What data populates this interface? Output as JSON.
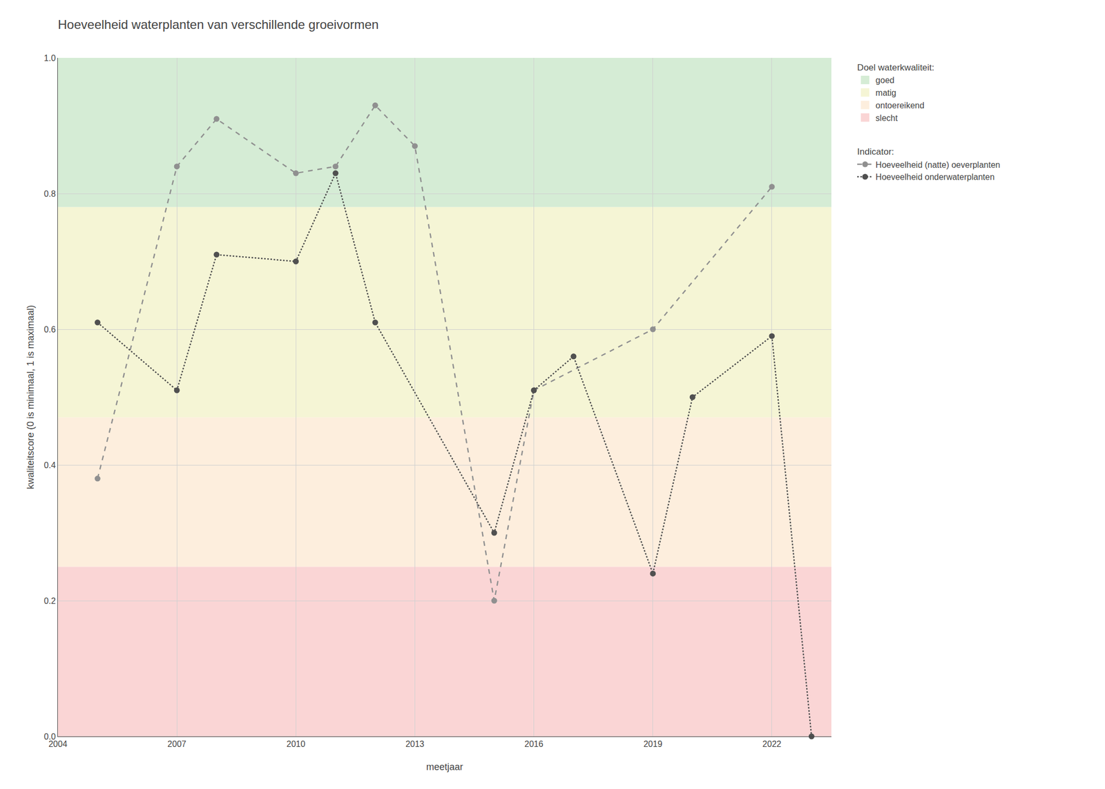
{
  "chart_data": {
    "type": "line",
    "title": "Hoeveelheid waterplanten van verschillende groeivormen",
    "x_label": "meetjaar",
    "y_label": "kwaliteitscore (0 is minimaal, 1 is maximaal)",
    "zones_title": "Doel waterkwaliteit:",
    "zones": [
      {
        "label": "goed",
        "color": "#d5ecd5",
        "ymin": 0.78,
        "ymax": 1.0
      },
      {
        "label": "matig",
        "color": "#f5f5d5",
        "ymin": 0.47,
        "ymax": 0.78
      },
      {
        "label": "ontoereikend",
        "color": "#fdeedd",
        "ymin": 0.25,
        "ymax": 0.47
      },
      {
        "label": "slecht",
        "color": "#fad5d5",
        "ymin": 0.0,
        "ymax": 0.25
      }
    ],
    "legend_title": "Indicator:",
    "series": [
      {
        "name": "Hoeveelheid (natte) oeverplanten",
        "color": "#909090",
        "line_style": "dashed",
        "marker": "circle",
        "x": [
          2005,
          2007,
          2008,
          2010,
          2011,
          2012,
          2013,
          2015,
          2016,
          2019,
          2022
        ],
        "values": [
          0.38,
          0.84,
          0.91,
          0.83,
          0.84,
          0.93,
          0.87,
          0.2,
          0.51,
          0.6,
          0.81
        ]
      },
      {
        "name": "Hoeveelheid onderwaterplanten",
        "color": "#505050",
        "line_style": "dotted",
        "marker": "circle",
        "x": [
          2005,
          2007,
          2008,
          2010,
          2011,
          2012,
          2015,
          2016,
          2017,
          2019,
          2020,
          2022,
          2023
        ],
        "values": [
          0.61,
          0.51,
          0.71,
          0.7,
          0.83,
          0.61,
          0.3,
          0.51,
          0.56,
          0.24,
          0.5,
          0.59,
          0.0
        ]
      }
    ],
    "xlim": [
      2004,
      2023.5
    ],
    "xticks": [
      2004,
      2007,
      2010,
      2013,
      2016,
      2019,
      2022
    ],
    "ylim": [
      0.0,
      1.0
    ],
    "yticks": [
      {
        "value": 0.0,
        "label": "0.0"
      },
      0.2,
      0.4,
      0.6,
      0.8,
      {
        "value": 1.0,
        "label": "1.0"
      }
    ],
    "grid": true
  }
}
